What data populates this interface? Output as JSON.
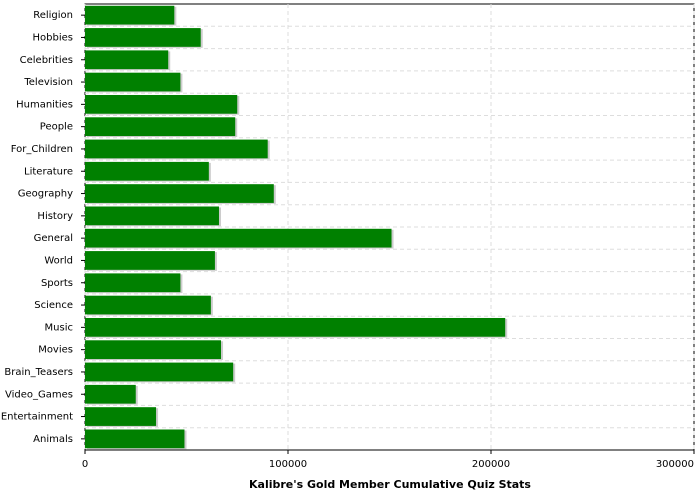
{
  "chart_data": {
    "type": "hbar",
    "xlabel": "Kalibre's Gold Member Cumulative Quiz Stats",
    "categories": [
      "Religion",
      "Hobbies",
      "Celebrities",
      "Television",
      "Humanities",
      "People",
      "For_Children",
      "Literature",
      "Geography",
      "History",
      "General",
      "World",
      "Sports",
      "Science",
      "Music",
      "Movies",
      "Brain_Teasers",
      "Video_Games",
      "Entertainment",
      "Animals"
    ],
    "values": [
      44000,
      57000,
      41000,
      47000,
      75000,
      74000,
      90000,
      61000,
      93000,
      66000,
      151000,
      64000,
      47000,
      62000,
      207000,
      67000,
      73000,
      25000,
      35000,
      49000
    ],
    "color": "#008000",
    "xlim": [
      0,
      300000
    ],
    "xticks": [
      0,
      100000,
      200000,
      300000
    ],
    "grid": true
  }
}
